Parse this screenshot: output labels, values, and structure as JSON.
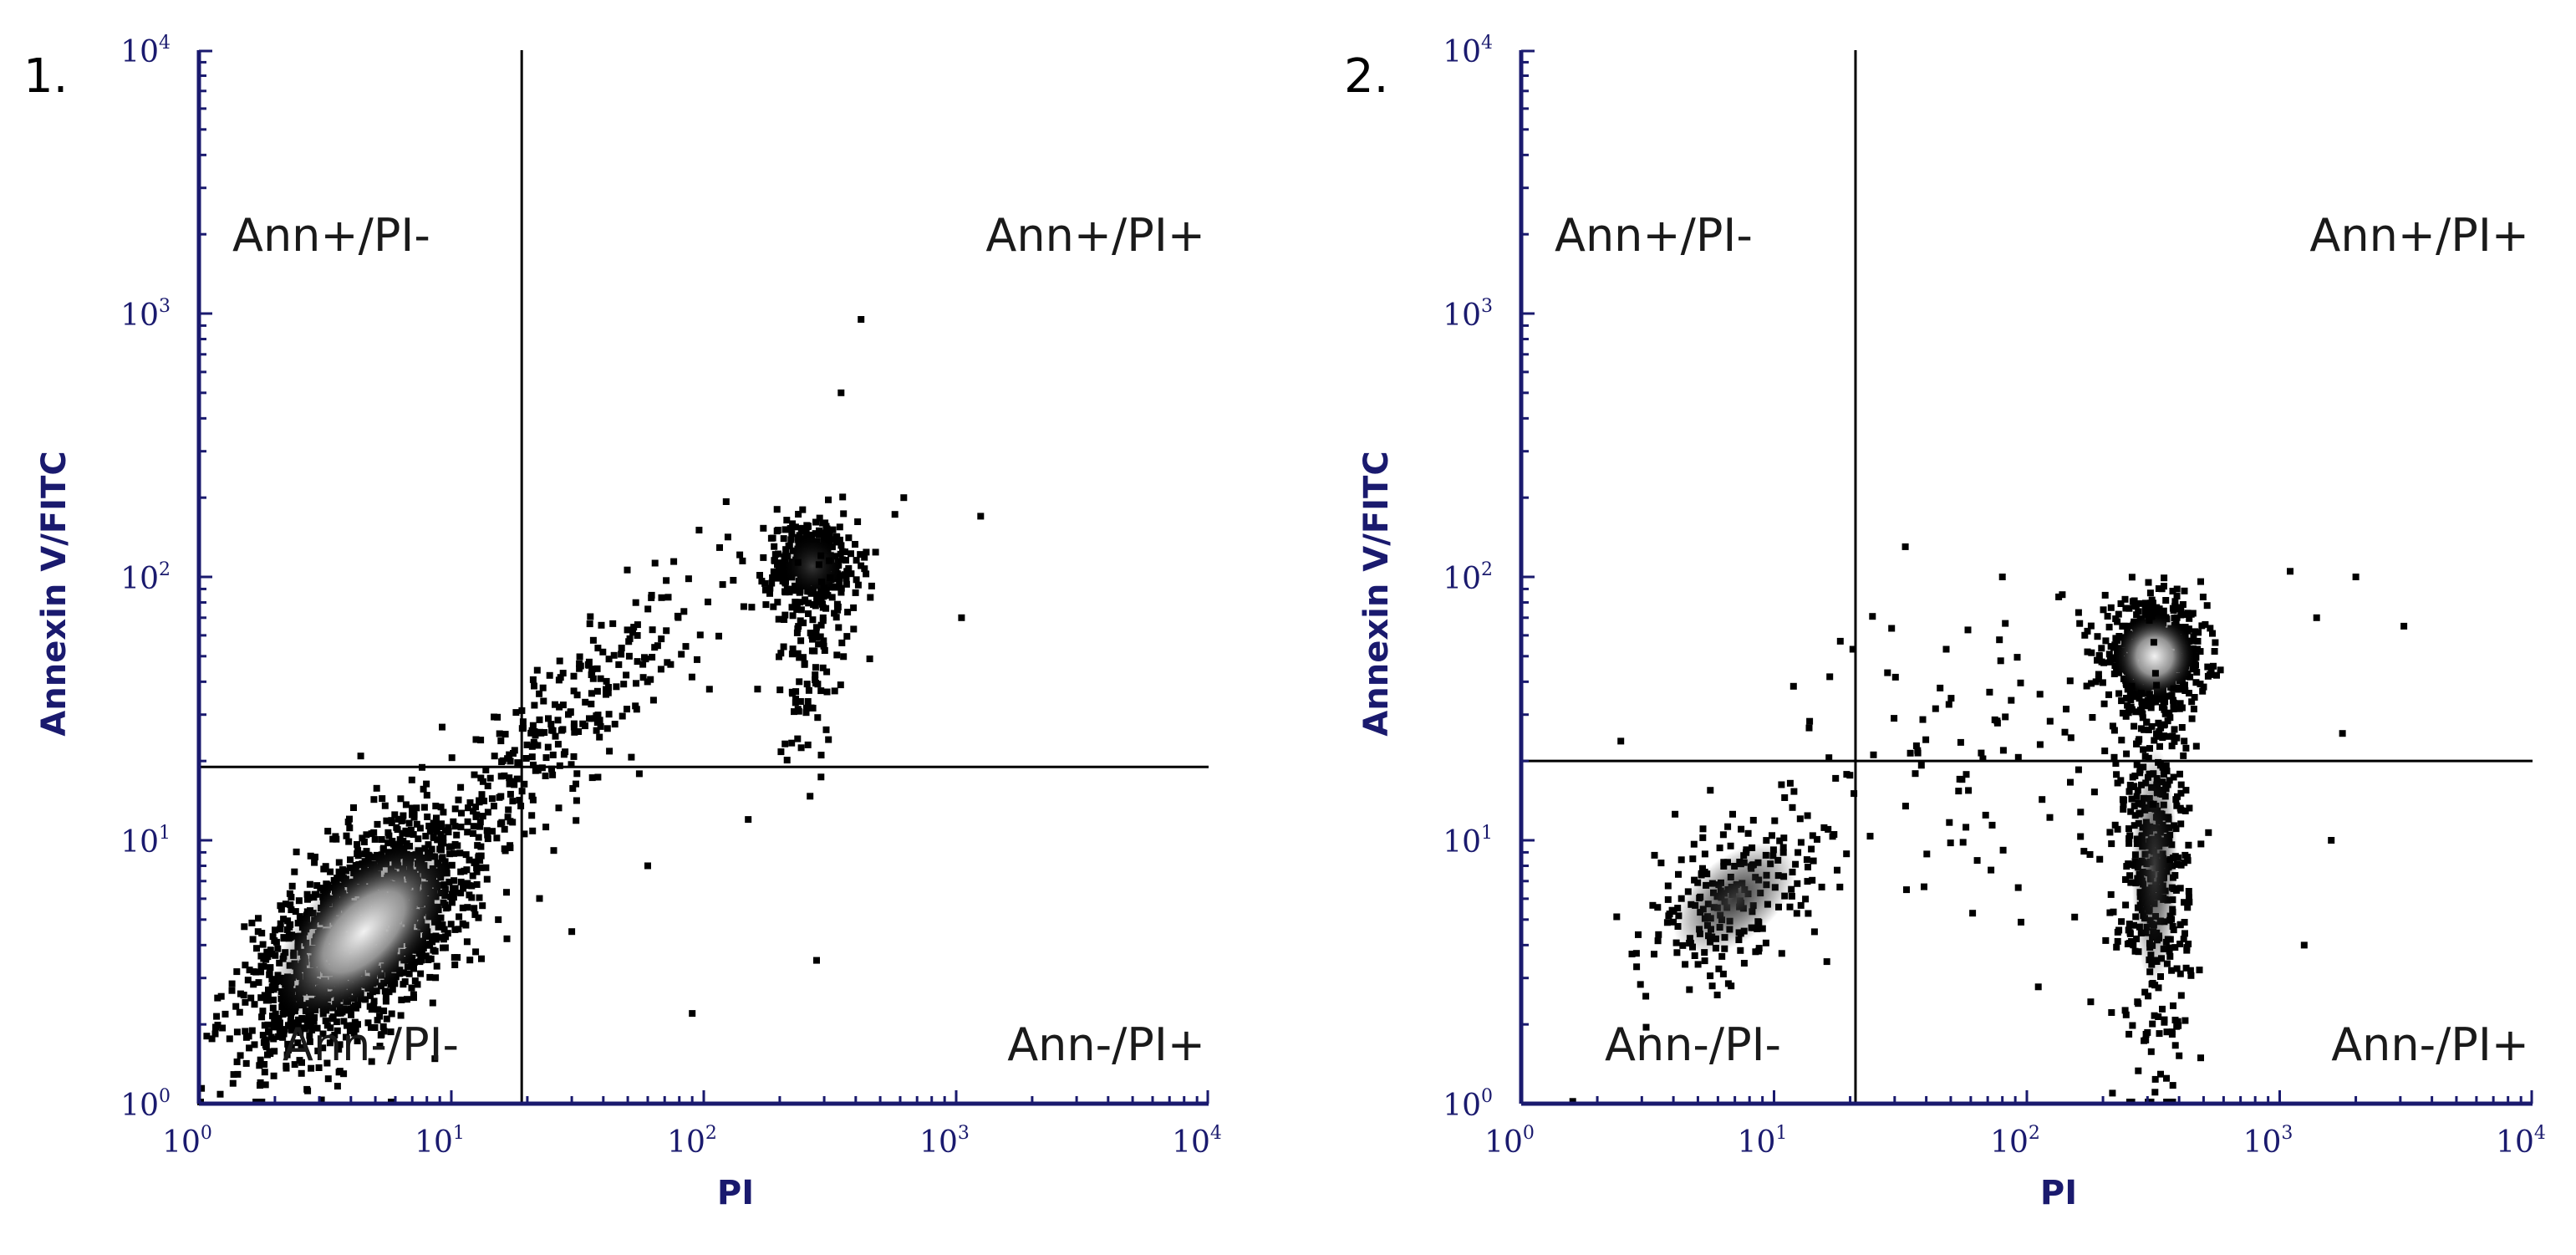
{
  "chart_data": [
    {
      "type": "scatter",
      "panel_label": "1.",
      "xlabel": "PI",
      "ylabel": "Annexin V/FITC",
      "xscale": "log",
      "yscale": "log",
      "xlim": [
        1,
        10000
      ],
      "ylim": [
        1,
        10000
      ],
      "x_ticks": [
        {
          "base": "10",
          "exp": "0"
        },
        {
          "base": "10",
          "exp": "1"
        },
        {
          "base": "10",
          "exp": "2"
        },
        {
          "base": "10",
          "exp": "3"
        },
        {
          "base": "10",
          "exp": "4"
        }
      ],
      "y_ticks": [
        {
          "base": "10",
          "exp": "0"
        },
        {
          "base": "10",
          "exp": "1"
        },
        {
          "base": "10",
          "exp": "2"
        },
        {
          "base": "10",
          "exp": "3"
        },
        {
          "base": "10",
          "exp": "4"
        }
      ],
      "gate_x": 19,
      "gate_y": 19,
      "quadrants": {
        "upper_left": "Ann+/PI-",
        "upper_right": "Ann+/PI+",
        "lower_left": "Ann-/PI-",
        "lower_right": "Ann-/PI+"
      },
      "clusters": [
        {
          "center": [
            4.5,
            4.5
          ],
          "spread_log": [
            0.28,
            0.14
          ],
          "angle_deg": 45,
          "count": 1800,
          "density": "high"
        },
        {
          "center": [
            30,
            30
          ],
          "spread_log": [
            0.35,
            0.12
          ],
          "angle_deg": 45,
          "count": 260,
          "density": "low"
        },
        {
          "center": [
            270,
            110
          ],
          "spread_log": [
            0.09,
            0.09
          ],
          "angle_deg": 0,
          "count": 420,
          "density": "medium"
        },
        {
          "center": [
            260,
            45
          ],
          "spread_log": [
            0.08,
            0.2
          ],
          "angle_deg": 0,
          "count": 90,
          "density": "low"
        }
      ],
      "outliers": [
        [
          420,
          950
        ],
        [
          350,
          500
        ],
        [
          1250,
          170
        ],
        [
          1050,
          70
        ],
        [
          280,
          3.5
        ],
        [
          90,
          2.2
        ],
        [
          30,
          4.5
        ],
        [
          60,
          8
        ],
        [
          150,
          12
        ],
        [
          620,
          200
        ]
      ]
    },
    {
      "type": "scatter",
      "panel_label": "2.",
      "xlabel": "PI",
      "ylabel": "Annexin V/FITC",
      "xscale": "log",
      "yscale": "log",
      "xlim": [
        1,
        10000
      ],
      "ylim": [
        1,
        10000
      ],
      "x_ticks": [
        {
          "base": "10",
          "exp": "0"
        },
        {
          "base": "10",
          "exp": "1"
        },
        {
          "base": "10",
          "exp": "2"
        },
        {
          "base": "10",
          "exp": "3"
        },
        {
          "base": "10",
          "exp": "4"
        }
      ],
      "y_ticks": [
        {
          "base": "10",
          "exp": "0"
        },
        {
          "base": "10",
          "exp": "1"
        },
        {
          "base": "10",
          "exp": "2"
        },
        {
          "base": "10",
          "exp": "3"
        },
        {
          "base": "10",
          "exp": "4"
        }
      ],
      "gate_x": 21,
      "gate_y": 20,
      "quadrants": {
        "upper_left": "Ann+/PI-",
        "upper_right": "Ann+/PI+",
        "lower_left": "Ann-/PI-",
        "lower_right": "Ann-/PI+"
      },
      "clusters": [
        {
          "center": [
            320,
            50
          ],
          "spread_log": [
            0.1,
            0.1
          ],
          "angle_deg": 0,
          "count": 700,
          "density": "high"
        },
        {
          "center": [
            320,
            8
          ],
          "spread_log": [
            0.07,
            0.35
          ],
          "angle_deg": 0,
          "count": 450,
          "density": "medium"
        },
        {
          "center": [
            7,
            6
          ],
          "spread_log": [
            0.22,
            0.12
          ],
          "angle_deg": 40,
          "count": 220,
          "density": "medium"
        },
        {
          "center": [
            60,
            20
          ],
          "spread_log": [
            0.45,
            0.3
          ],
          "angle_deg": 0,
          "count": 110,
          "density": "low"
        }
      ],
      "outliers": [
        [
          2000,
          100
        ],
        [
          3100,
          65
        ],
        [
          1600,
          10
        ],
        [
          1250,
          4
        ],
        [
          1.6,
          1.02
        ],
        [
          80,
          100
        ],
        [
          1100,
          105
        ],
        [
          1400,
          70
        ]
      ]
    }
  ]
}
